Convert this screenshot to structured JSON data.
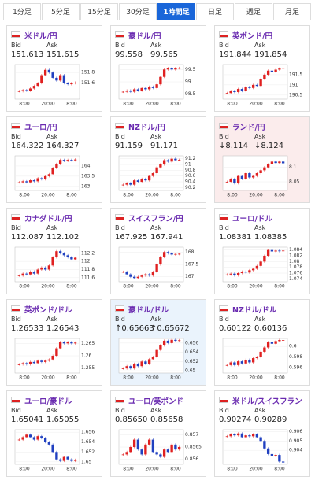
{
  "tabs": [
    "1分足",
    "5分足",
    "15分足",
    "30分足",
    "1時間足",
    "日足",
    "週足",
    "月足"
  ],
  "active_tab": 4,
  "labels": {
    "bid": "Bid",
    "ask": "Ask"
  },
  "cards": [
    {
      "name": "米ドル/円",
      "bid": "151.613",
      "ask": "151.615",
      "ylim": [
        151.3,
        151.95
      ],
      "yticks": [
        151.8,
        151.6
      ],
      "xlabels": [
        "8:00",
        "20:00",
        "8:00"
      ],
      "closes": [
        151.45,
        151.47,
        151.46,
        151.5,
        151.55,
        151.6,
        151.75,
        151.85,
        151.8,
        151.7,
        151.65,
        151.75,
        151.6,
        151.58,
        151.6,
        151.61
      ]
    },
    {
      "name": "豪ドル/円",
      "bid": "99.558",
      "ask": "99.565",
      "ylim": [
        98.3,
        99.7
      ],
      "yticks": [
        99.5,
        99,
        98.5
      ],
      "xlabels": [
        "8:00",
        "20:00",
        "8:00"
      ],
      "closes": [
        98.6,
        98.65,
        98.6,
        98.7,
        98.65,
        98.75,
        98.7,
        98.8,
        98.75,
        98.9,
        99.2,
        99.5,
        99.55,
        99.5,
        99.55,
        99.56
      ]
    },
    {
      "name": "英ポンド/円",
      "bid": "191.844",
      "ask": "191.854",
      "ylim": [
        190.3,
        192.0
      ],
      "yticks": [
        191.5,
        191,
        190.5
      ],
      "xlabels": [
        "8:00",
        "20:00",
        "8:00"
      ],
      "closes": [
        190.6,
        190.7,
        190.65,
        190.8,
        190.7,
        190.9,
        190.85,
        191,
        190.95,
        191.3,
        191.5,
        191.7,
        191.65,
        191.75,
        191.8,
        191.84
      ]
    },
    {
      "name": "ユーロ/円",
      "bid": "164.322",
      "ask": "164.327",
      "ylim": [
        162.8,
        164.5
      ],
      "yticks": [
        164,
        163.5,
        163
      ],
      "xlabels": [
        "8:00",
        "20:00",
        "8:00"
      ],
      "closes": [
        163.2,
        163.25,
        163.2,
        163.3,
        163.25,
        163.4,
        163.35,
        163.5,
        163.6,
        163.9,
        164.1,
        164.3,
        164.25,
        164.3,
        164.28,
        164.32
      ]
    },
    {
      "name": "NZドル/円",
      "bid": "91.159",
      "ask": "91.171",
      "ylim": [
        90.1,
        91.3
      ],
      "yticks": [
        91.2,
        91,
        90.8,
        90.6,
        90.4,
        90.2
      ],
      "xlabels": [
        "8:00",
        "20:00",
        "8:00"
      ],
      "closes": [
        90.3,
        90.35,
        90.3,
        90.45,
        90.4,
        90.5,
        90.45,
        90.6,
        90.7,
        90.9,
        91.0,
        91.15,
        91.1,
        91.2,
        91.15,
        91.16
      ]
    },
    {
      "name": "ランド/円",
      "bid": "↓8.114",
      "ask": "↓8.124",
      "background": "#fbecec",
      "ylim": [
        8.02,
        8.14
      ],
      "yticks": [
        8.1,
        8.05
      ],
      "xlabels": [
        "8:00",
        "20:00",
        "8:00"
      ],
      "closes": [
        8.05,
        8.06,
        8.045,
        8.07,
        8.06,
        8.08,
        8.065,
        8.07,
        8.08,
        8.09,
        8.1,
        8.11,
        8.12,
        8.115,
        8.12,
        8.114
      ]
    },
    {
      "name": "カナダドル/円",
      "bid": "112.087",
      "ask": "112.102",
      "ylim": [
        111.5,
        112.35
      ],
      "yticks": [
        112.2,
        112,
        111.8,
        111.6
      ],
      "xlabels": [
        "8:00",
        "20:00",
        "8:00"
      ],
      "closes": [
        111.65,
        111.7,
        111.68,
        111.75,
        111.7,
        111.8,
        111.85,
        111.8,
        111.9,
        112.1,
        112.25,
        112.2,
        112.15,
        112.1,
        112.05,
        112.09
      ]
    },
    {
      "name": "スイスフラン/円",
      "bid": "167.925",
      "ask": "167.941",
      "ylim": [
        166.8,
        168.2
      ],
      "yticks": [
        168,
        167.5,
        167
      ],
      "xlabels": [
        "8:00",
        "20:00",
        "8:00"
      ],
      "closes": [
        167.2,
        167.1,
        167.0,
        166.95,
        167.0,
        167.05,
        167.1,
        167.05,
        167.2,
        167.5,
        167.8,
        168.0,
        167.95,
        167.9,
        167.92,
        167.93
      ]
    },
    {
      "name": "ユーロ/ドル",
      "bid": "1.08381",
      "ask": "1.08385",
      "ylim": [
        1.073,
        1.085
      ],
      "yticks": [
        1.084,
        1.082,
        1.08,
        1.078,
        1.076,
        1.074
      ],
      "xlabels": [
        "8:00",
        "20:00",
        "8:00"
      ],
      "closes": [
        1.0755,
        1.0758,
        1.0752,
        1.076,
        1.0765,
        1.0762,
        1.077,
        1.0775,
        1.0785,
        1.08,
        1.082,
        1.084,
        1.0835,
        1.0838,
        1.0836,
        1.0838
      ]
    },
    {
      "name": "英ポンド/ドル",
      "bid": "1.26533",
      "ask": "1.26543",
      "ylim": [
        1.253,
        1.267
      ],
      "yticks": [
        1.265,
        1.26,
        1.255
      ],
      "xlabels": [
        "8:00",
        "20:00",
        "8:00"
      ],
      "closes": [
        1.2565,
        1.257,
        1.2565,
        1.2575,
        1.257,
        1.258,
        1.2575,
        1.258,
        1.2585,
        1.26,
        1.263,
        1.2655,
        1.265,
        1.2655,
        1.265,
        1.2653
      ]
    },
    {
      "name": "豪ドル/ドル",
      "bid": "↑0.65663",
      "ask": "↑0.65672",
      "background": "#eaf3fc",
      "ylim": [
        0.6495,
        0.657
      ],
      "yticks": [
        0.656,
        0.654,
        0.652,
        0.65
      ],
      "xlabels": [
        "8:00",
        "20:00",
        "8:00"
      ],
      "closes": [
        0.6505,
        0.651,
        0.6505,
        0.6515,
        0.651,
        0.652,
        0.6515,
        0.6525,
        0.653,
        0.6545,
        0.6555,
        0.6565,
        0.656,
        0.6567,
        0.6565,
        0.6566
      ]
    },
    {
      "name": "NZドル/ドル",
      "bid": "0.60122",
      "ask": "0.60136",
      "ylim": [
        0.595,
        0.6015
      ],
      "yticks": [
        0.6,
        0.598,
        0.596
      ],
      "xlabels": [
        "8:00",
        "20:00",
        "8:00"
      ],
      "closes": [
        0.5965,
        0.597,
        0.5965,
        0.5972,
        0.5968,
        0.5975,
        0.597,
        0.5978,
        0.598,
        0.599,
        0.5998,
        0.6008,
        0.6005,
        0.601,
        0.6012,
        0.6012
      ]
    },
    {
      "name": "ユーロ/豪ドル",
      "bid": "1.65041",
      "ask": "1.65055",
      "ylim": [
        1.6495,
        1.6565
      ],
      "yticks": [
        1.656,
        1.654,
        1.652,
        1.65
      ],
      "xlabels": [
        "8:00",
        "20:00",
        "8:00"
      ],
      "closes": [
        1.6545,
        1.655,
        1.6555,
        1.655,
        1.6545,
        1.6552,
        1.6548,
        1.654,
        1.6535,
        1.652,
        1.6505,
        1.6502,
        1.651,
        1.6505,
        1.6502,
        1.6504
      ]
    },
    {
      "name": "ユーロ/英ポンド",
      "bid": "0.85650",
      "ask": "0.85658",
      "ylim": [
        0.8558,
        0.8572
      ],
      "yticks": [
        0.857,
        0.8565,
        0.856
      ],
      "xlabels": [
        "8:00",
        "20:00",
        "8:00"
      ],
      "closes": [
        0.8562,
        0.8563,
        0.8565,
        0.8568,
        0.8564,
        0.8562,
        0.8566,
        0.8568,
        0.8563,
        0.8562,
        0.8561,
        0.8564,
        0.8563,
        0.8566,
        0.8564,
        0.8565
      ]
    },
    {
      "name": "米ドル/スイスフラン",
      "bid": "0.90274",
      "ask": "0.90289",
      "ylim": [
        0.9025,
        0.9062
      ],
      "yticks": [
        0.906,
        0.905,
        0.904
      ],
      "xlabels": [
        "8:00",
        "20:00",
        "8:00"
      ],
      "closes": [
        0.9055,
        0.9057,
        0.9056,
        0.9058,
        0.9054,
        0.9056,
        0.9055,
        0.9057,
        0.9054,
        0.905,
        0.9042,
        0.9036,
        0.9034,
        0.9035,
        0.9028,
        0.9027
      ]
    }
  ]
}
